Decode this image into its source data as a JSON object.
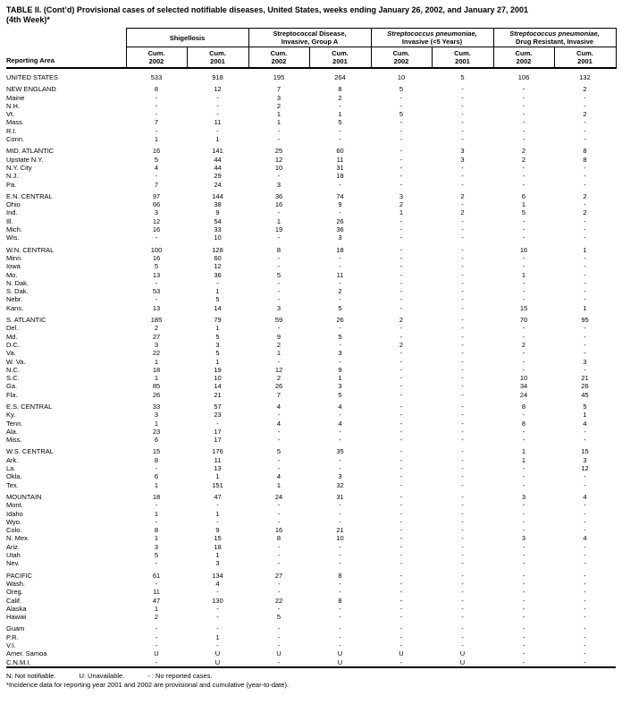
{
  "page": {
    "title_line1": "TABLE II. (Cont’d) Provisional cases of selected notifiable diseases, United States, weeks ending January 26, 2002, and January 27, 2001",
    "title_line2": "(4th Week)*"
  },
  "header": {
    "reporting_area": "Reporting Area",
    "cum_label": "Cum.",
    "years": [
      "2002",
      "2001"
    ],
    "groups": [
      {
        "line1": "Shigellosis",
        "line2": ""
      },
      {
        "line1": "Streptococcal Disease,",
        "line2": "Invasive, Group A"
      },
      {
        "line1": "Streptococcus pneumoniae,",
        "line2": "Invasive (<5 Years)"
      },
      {
        "line1": "Streptococcus pneumoniae,",
        "line2": "Drug Resistant, Invasive"
      }
    ]
  },
  "sections": [
    {
      "rows": [
        {
          "label": "UNITED STATES",
          "values": [
            "533",
            "918",
            "195",
            "264",
            "10",
            "5",
            "106",
            "132"
          ]
        }
      ]
    },
    {
      "rows": [
        {
          "label": "NEW ENGLAND",
          "values": [
            "8",
            "12",
            "7",
            "8",
            "5",
            "-",
            "-",
            "2"
          ]
        },
        {
          "label": "Maine",
          "values": [
            "-",
            "-",
            "3",
            "2",
            "-",
            "-",
            "-",
            "-"
          ]
        },
        {
          "label": "N.H.",
          "values": [
            "-",
            "-",
            "2",
            "-",
            "-",
            "-",
            "-",
            "-"
          ]
        },
        {
          "label": "Vt.",
          "values": [
            "-",
            "-",
            "1",
            "1",
            "5",
            "-",
            "-",
            "2"
          ]
        },
        {
          "label": "Mass.",
          "values": [
            "7",
            "11",
            "1",
            "5",
            "-",
            "-",
            "-",
            "-"
          ]
        },
        {
          "label": "R.I.",
          "values": [
            "-",
            "-",
            "-",
            "-",
            "-",
            "-",
            "-",
            "-"
          ]
        },
        {
          "label": "Conn.",
          "values": [
            "1",
            "1",
            "-",
            "-",
            "-",
            "-",
            "-",
            "-"
          ]
        }
      ]
    },
    {
      "rows": [
        {
          "label": "MID. ATLANTIC",
          "values": [
            "16",
            "141",
            "25",
            "60",
            "-",
            "3",
            "2",
            "8"
          ]
        },
        {
          "label": "Upstate N.Y.",
          "values": [
            "5",
            "44",
            "12",
            "11",
            "-",
            "3",
            "2",
            "8"
          ]
        },
        {
          "label": "N.Y. City",
          "values": [
            "4",
            "44",
            "10",
            "31",
            "-",
            "-",
            "-",
            "-"
          ]
        },
        {
          "label": "N.J.",
          "values": [
            "-",
            "29",
            "-",
            "18",
            "-",
            "-",
            "-",
            "-"
          ]
        },
        {
          "label": "Pa.",
          "values": [
            "7",
            "24",
            "3",
            "-",
            "-",
            "-",
            "-",
            "-"
          ]
        }
      ]
    },
    {
      "rows": [
        {
          "label": "E.N. CENTRAL",
          "values": [
            "97",
            "144",
            "36",
            "74",
            "3",
            "2",
            "6",
            "2"
          ]
        },
        {
          "label": "Ohio",
          "values": [
            "66",
            "38",
            "16",
            "9",
            "2",
            "-",
            "1",
            "-"
          ]
        },
        {
          "label": "Ind.",
          "values": [
            "3",
            "9",
            "-",
            "-",
            "1",
            "2",
            "5",
            "2"
          ]
        },
        {
          "label": "Ill.",
          "values": [
            "12",
            "54",
            "1",
            "26",
            "-",
            "-",
            "-",
            "-"
          ]
        },
        {
          "label": "Mich.",
          "values": [
            "16",
            "33",
            "19",
            "36",
            "-",
            "-",
            "-",
            "-"
          ]
        },
        {
          "label": "Wis.",
          "values": [
            "-",
            "10",
            "-",
            "3",
            "-",
            "-",
            "-",
            "-"
          ]
        }
      ]
    },
    {
      "rows": [
        {
          "label": "W.N. CENTRAL",
          "values": [
            "100",
            "128",
            "8",
            "18",
            "-",
            "-",
            "16",
            "1"
          ]
        },
        {
          "label": "Minn.",
          "values": [
            "16",
            "60",
            "-",
            "-",
            "-",
            "-",
            "-",
            "-"
          ]
        },
        {
          "label": "Iowa",
          "values": [
            "5",
            "12",
            "-",
            "-",
            "-",
            "-",
            "-",
            "-"
          ]
        },
        {
          "label": "Mo.",
          "values": [
            "13",
            "36",
            "5",
            "11",
            "-",
            "-",
            "1",
            "-"
          ]
        },
        {
          "label": "N. Dak.",
          "values": [
            "-",
            "-",
            "-",
            "-",
            "-",
            "-",
            "-",
            "-"
          ]
        },
        {
          "label": "S. Dak.",
          "values": [
            "53",
            "1",
            "-",
            "2",
            "-",
            "-",
            "-",
            "-"
          ]
        },
        {
          "label": "Nebr.",
          "values": [
            "-",
            "5",
            "-",
            "-",
            "-",
            "-",
            "-",
            "-"
          ]
        },
        {
          "label": "Kans.",
          "values": [
            "13",
            "14",
            "3",
            "5",
            "-",
            "-",
            "15",
            "1"
          ]
        }
      ]
    },
    {
      "rows": [
        {
          "label": "S. ATLANTIC",
          "values": [
            "185",
            "79",
            "59",
            "26",
            "2",
            "-",
            "70",
            "95"
          ]
        },
        {
          "label": "Del.",
          "values": [
            "2",
            "1",
            "-",
            "-",
            "-",
            "-",
            "-",
            "-"
          ]
        },
        {
          "label": "Md.",
          "values": [
            "27",
            "5",
            "9",
            "5",
            "-",
            "-",
            "-",
            "-"
          ]
        },
        {
          "label": "D.C.",
          "values": [
            "3",
            "3",
            "2",
            "-",
            "2",
            "-",
            "2",
            "-"
          ]
        },
        {
          "label": "Va.",
          "values": [
            "22",
            "5",
            "1",
            "3",
            "-",
            "-",
            "-",
            "-"
          ]
        },
        {
          "label": "W. Va.",
          "values": [
            "1",
            "1",
            "-",
            "-",
            "-",
            "-",
            "-",
            "3"
          ]
        },
        {
          "label": "N.C.",
          "values": [
            "18",
            "19",
            "12",
            "9",
            "-",
            "-",
            "-",
            "-"
          ]
        },
        {
          "label": "S.C.",
          "values": [
            "1",
            "10",
            "2",
            "1",
            "-",
            "-",
            "10",
            "21"
          ]
        },
        {
          "label": "Ga.",
          "values": [
            "85",
            "14",
            "26",
            "3",
            "-",
            "-",
            "34",
            "26"
          ]
        },
        {
          "label": "Fla.",
          "values": [
            "26",
            "21",
            "7",
            "5",
            "-",
            "-",
            "24",
            "45"
          ]
        }
      ]
    },
    {
      "rows": [
        {
          "label": "E.S. CENTRAL",
          "values": [
            "33",
            "57",
            "4",
            "4",
            "-",
            "-",
            "8",
            "5"
          ]
        },
        {
          "label": "Ky.",
          "values": [
            "3",
            "23",
            "-",
            "-",
            "-",
            "-",
            "-",
            "1"
          ]
        },
        {
          "label": "Tenn.",
          "values": [
            "1",
            "-",
            "4",
            "4",
            "-",
            "-",
            "8",
            "4"
          ]
        },
        {
          "label": "Ala.",
          "values": [
            "23",
            "17",
            "-",
            "-",
            "-",
            "-",
            "-",
            "-"
          ]
        },
        {
          "label": "Miss.",
          "values": [
            "6",
            "17",
            "-",
            "-",
            "-",
            "-",
            "-",
            "-"
          ]
        }
      ]
    },
    {
      "rows": [
        {
          "label": "W.S. CENTRAL",
          "values": [
            "15",
            "176",
            "5",
            "35",
            "-",
            "-",
            "1",
            "15"
          ]
        },
        {
          "label": "Ark.",
          "values": [
            "8",
            "11",
            "-",
            "-",
            "-",
            "-",
            "1",
            "3"
          ]
        },
        {
          "label": "La.",
          "values": [
            "-",
            "13",
            "-",
            "-",
            "-",
            "-",
            "-",
            "12"
          ]
        },
        {
          "label": "Okla.",
          "values": [
            "6",
            "1",
            "4",
            "3",
            "-",
            "-",
            "-",
            "-"
          ]
        },
        {
          "label": "Tex.",
          "values": [
            "1",
            "151",
            "1",
            "32",
            "-",
            "-",
            "-",
            "-"
          ]
        }
      ]
    },
    {
      "rows": [
        {
          "label": "MOUNTAIN",
          "values": [
            "18",
            "47",
            "24",
            "31",
            "-",
            "-",
            "3",
            "4"
          ]
        },
        {
          "label": "Mont.",
          "values": [
            "-",
            "-",
            "-",
            "-",
            "-",
            "-",
            "-",
            "-"
          ]
        },
        {
          "label": "Idaho",
          "values": [
            "1",
            "1",
            "-",
            "-",
            "-",
            "-",
            "-",
            "-"
          ]
        },
        {
          "label": "Wyo.",
          "values": [
            "-",
            "-",
            "-",
            "-",
            "-",
            "-",
            "-",
            "-"
          ]
        },
        {
          "label": "Colo.",
          "values": [
            "8",
            "9",
            "16",
            "21",
            "-",
            "-",
            "-",
            "-"
          ]
        },
        {
          "label": "N. Mex.",
          "values": [
            "1",
            "15",
            "8",
            "10",
            "-",
            "-",
            "3",
            "4"
          ]
        },
        {
          "label": "Ariz.",
          "values": [
            "3",
            "18",
            "-",
            "-",
            "-",
            "-",
            "-",
            "-"
          ]
        },
        {
          "label": "Utah",
          "values": [
            "5",
            "1",
            "-",
            "-",
            "-",
            "-",
            "-",
            "-"
          ]
        },
        {
          "label": "Nev.",
          "values": [
            "-",
            "3",
            "-",
            "-",
            "-",
            "-",
            "-",
            "-"
          ]
        }
      ]
    },
    {
      "rows": [
        {
          "label": "PACIFIC",
          "values": [
            "61",
            "134",
            "27",
            "8",
            "-",
            "-",
            "-",
            "-"
          ]
        },
        {
          "label": "Wash.",
          "values": [
            "-",
            "4",
            "-",
            "-",
            "-",
            "-",
            "-",
            "-"
          ]
        },
        {
          "label": "Oreg.",
          "values": [
            "11",
            "-",
            "-",
            "-",
            "-",
            "-",
            "-",
            "-"
          ]
        },
        {
          "label": "Calif.",
          "values": [
            "47",
            "130",
            "22",
            "8",
            "-",
            "-",
            "-",
            "-"
          ]
        },
        {
          "label": "Alaska",
          "values": [
            "1",
            "-",
            "-",
            "-",
            "-",
            "-",
            "-",
            "-"
          ]
        },
        {
          "label": "Hawaii",
          "values": [
            "2",
            "-",
            "5",
            "-",
            "-",
            "-",
            "-",
            "-"
          ]
        }
      ]
    },
    {
      "rows": [
        {
          "label": "Guam",
          "values": [
            "-",
            "-",
            "-",
            "-",
            "-",
            "-",
            "-",
            "-"
          ]
        },
        {
          "label": "P.R.",
          "values": [
            "-",
            "1",
            "-",
            "-",
            "-",
            "-",
            "-",
            "-"
          ]
        },
        {
          "label": "V.I.",
          "values": [
            "-",
            "-",
            "-",
            "-",
            "-",
            "-",
            "-",
            "-"
          ]
        },
        {
          "label": "Amer. Samoa",
          "values": [
            "U",
            "U",
            "U",
            "U",
            "U",
            "U",
            "-",
            "-"
          ]
        },
        {
          "label": "C.N.M.I.",
          "values": [
            "-",
            "U",
            "-",
            "U",
            "-",
            "U",
            "-",
            "-"
          ]
        }
      ]
    }
  ],
  "footnotes": {
    "not_notifiable": "N: Not notifiable.",
    "unavailable": "U: Unavailable.",
    "no_cases": "- : No reported cases.",
    "incidence": "*Incidence data for reporting year 2001 and 2002 are provisional and cumulative (year-to-date)."
  }
}
